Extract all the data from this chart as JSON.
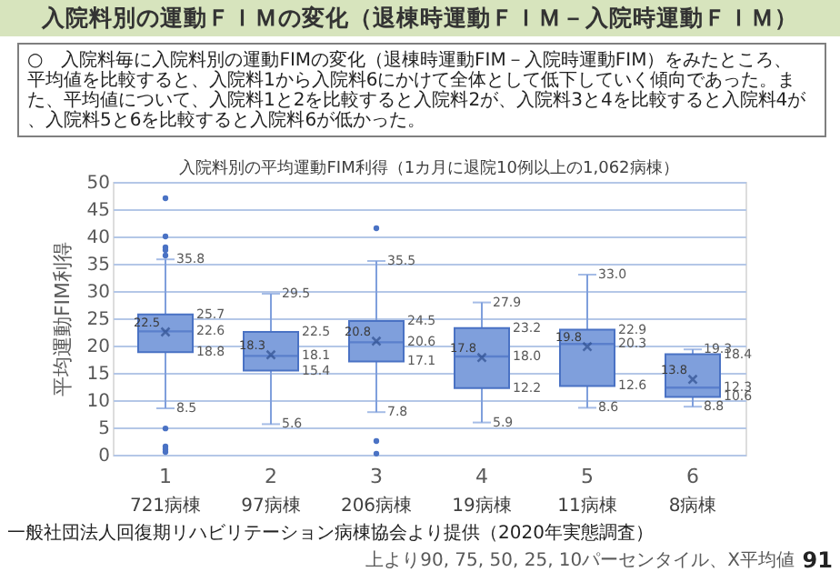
{
  "chart_data": {
    "type": "box",
    "title": "入院料別の運動ＦＩＭの変化（退棟時運動ＦＩＭ－入院時運動ＦＩＭ）",
    "subtitle": "入院料別の平均運動FIM利得（1カ月に退院10例以上の1,062病棟）",
    "ylabel": "平均運動FIM利得",
    "categories": [
      "1",
      "2",
      "3",
      "4",
      "5",
      "6"
    ],
    "boxes": [
      {
        "low": 8.5,
        "q1": 18.8,
        "median": 22.6,
        "q3": 25.7,
        "high": 35.8,
        "mean": 22.5,
        "outliers": [
          47,
          40,
          38,
          37.5,
          36.5,
          4.8,
          1.5,
          1.0,
          0.5
        ]
      },
      {
        "low": 5.6,
        "q1": 15.4,
        "median": 18.1,
        "q3": 22.5,
        "high": 29.5,
        "mean": 18.3
      },
      {
        "low": 7.8,
        "q1": 17.1,
        "median": 20.6,
        "q3": 24.5,
        "high": 35.5,
        "mean": 20.8,
        "outliers": [
          41.5,
          2.5,
          0.2
        ]
      },
      {
        "low": 5.9,
        "q1": 12.2,
        "median": 18.0,
        "q3": 23.2,
        "high": 27.9,
        "mean": 17.8
      },
      {
        "low": 8.6,
        "q1": 12.6,
        "median": 20.3,
        "q3": 22.9,
        "high": 33.0,
        "mean": 19.8
      },
      {
        "low": 8.8,
        "q1": 10.6,
        "median": 12.3,
        "q3": 18.4,
        "high": 19.3,
        "mean": 13.8
      }
    ],
    "color": "#7f9fdc",
    "ylim": [
      0,
      50
    ],
    "yticks": [
      0,
      5,
      10,
      15,
      20,
      25,
      30,
      35,
      40,
      45,
      50
    ],
    "grid": "y",
    "annotations": [
      "○　入院料毎に入院料別の運動FIMの変化（退棟時運動FIM－入院時運動FIM）をみたところ、平均値を比較すると、入院料1から入院料6にかけて全体として低下していく傾向であった。また、平均値について、入院料1と2を比較すると入院料2が、入院料3と4を比較すると入院料4が、入院料5と6を比較すると入院料6が低かった。",
      "721病棟",
      "97病棟",
      "206病棟",
      "19病棟",
      "11病棟",
      "8病棟",
      "一般社団法人回復期リハビリテーション病棟協会より提供（2020年実態調査）",
      "上より90, 75, 50, 25, 10パーセンタイル、X平均値",
      "91",
      {
        "text": "35.8",
        "x": "1",
        "y": 35.8
      },
      {
        "text": "25.7",
        "x": "1",
        "y": 25.7
      },
      {
        "text": "22.6",
        "x": "1",
        "y": 22.6
      },
      {
        "text": "22.5",
        "x": "1",
        "y": 22.5
      },
      {
        "text": "18.8",
        "x": "1",
        "y": 18.8
      },
      {
        "text": "8.5",
        "x": "1",
        "y": 8.5
      },
      {
        "text": "29.5",
        "x": "2",
        "y": 29.5
      },
      {
        "text": "22.5",
        "x": "2",
        "y": 22.5
      },
      {
        "text": "18.1",
        "x": "2",
        "y": 18.1
      },
      {
        "text": "18.3",
        "x": "2",
        "y": 18.3
      },
      {
        "text": "15.4",
        "x": "2",
        "y": 15.4
      },
      {
        "text": "5.6",
        "x": "2",
        "y": 5.6
      },
      {
        "text": "35.5",
        "x": "3",
        "y": 35.5
      },
      {
        "text": "24.5",
        "x": "3",
        "y": 24.5
      },
      {
        "text": "20.6",
        "x": "3",
        "y": 20.6
      },
      {
        "text": "20.8",
        "x": "3",
        "y": 20.8
      },
      {
        "text": "17.1",
        "x": "3",
        "y": 17.1
      },
      {
        "text": "7.8",
        "x": "3",
        "y": 7.8
      },
      {
        "text": "27.9",
        "x": "4",
        "y": 27.9
      },
      {
        "text": "23.2",
        "x": "4",
        "y": 23.2
      },
      {
        "text": "18.0",
        "x": "4",
        "y": 18.0
      },
      {
        "text": "17.8",
        "x": "4",
        "y": 17.8
      },
      {
        "text": "12.2",
        "x": "4",
        "y": 12.2
      },
      {
        "text": "5.9",
        "x": "4",
        "y": 5.9
      },
      {
        "text": "33.0",
        "x": "5",
        "y": 33.0
      },
      {
        "text": "22.9",
        "x": "5",
        "y": 22.9
      },
      {
        "text": "20.3",
        "x": "5",
        "y": 20.3
      },
      {
        "text": "19.8",
        "x": "5",
        "y": 19.8
      },
      {
        "text": "12.6",
        "x": "5",
        "y": 12.6
      },
      {
        "text": "8.6",
        "x": "5",
        "y": 8.6
      },
      {
        "text": "19.3",
        "x": "6",
        "y": 19.3
      },
      {
        "text": "18.4",
        "x": "6",
        "y": 18.4
      },
      {
        "text": "12.3",
        "x": "6",
        "y": 12.3
      },
      {
        "text": "13.8",
        "x": "6",
        "y": 13.8
      },
      {
        "text": "10.6",
        "x": "6",
        "y": 10.6
      },
      {
        "text": "8.8",
        "x": "6",
        "y": 8.8
      }
    ]
  }
}
